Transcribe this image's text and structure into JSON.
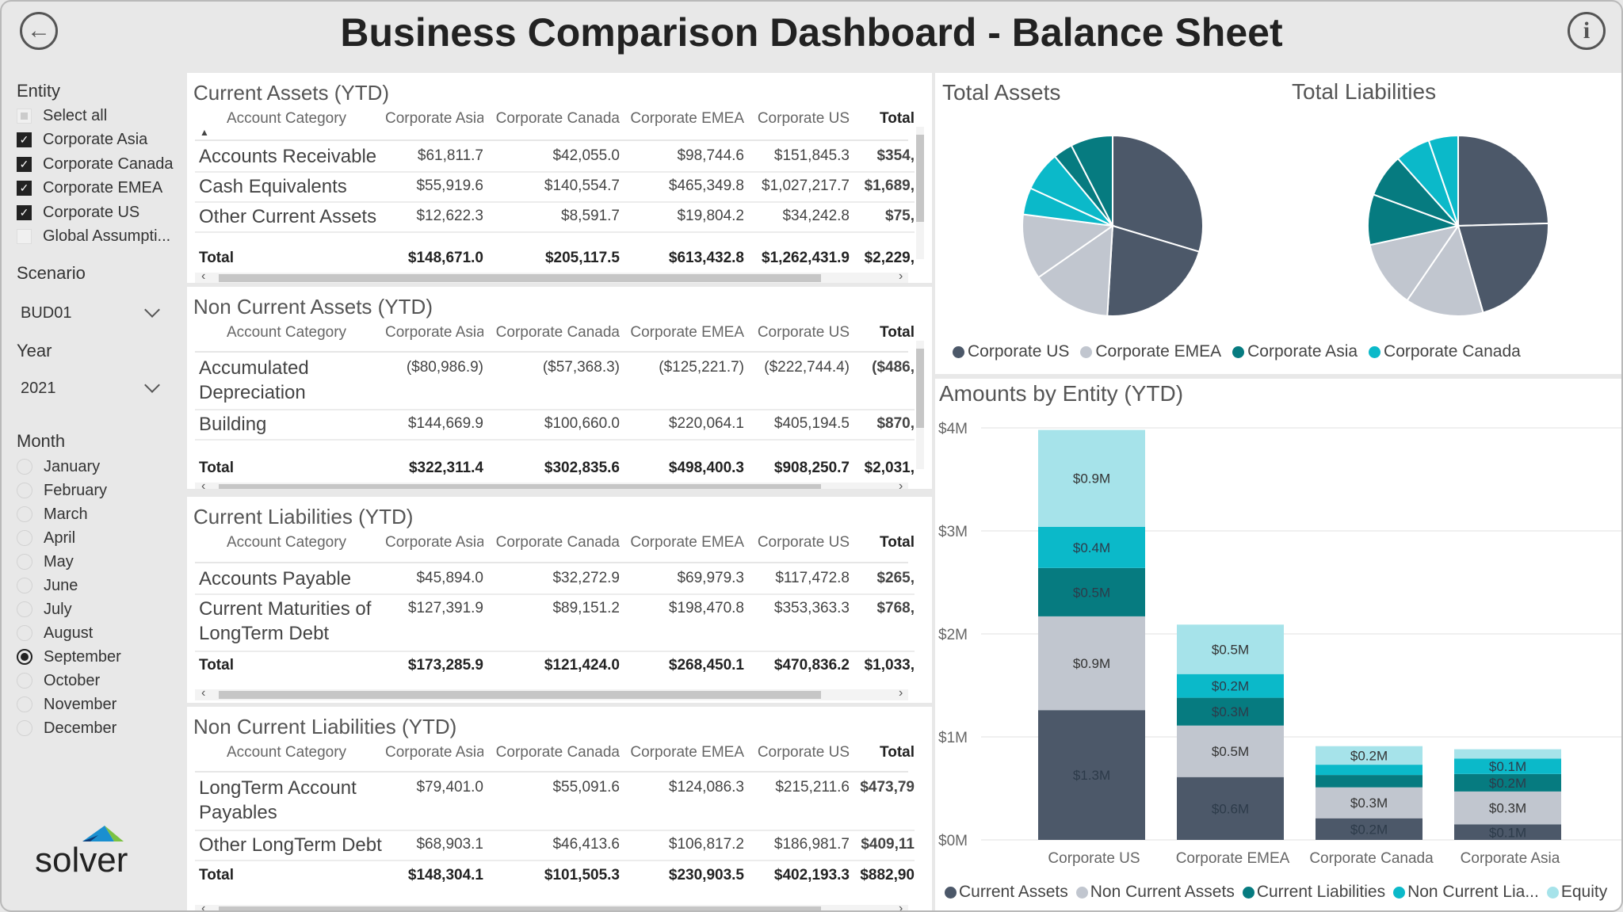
{
  "header": {
    "title": "Business Comparison Dashboard - Balance Sheet",
    "back_icon": "back-arrow-icon",
    "info_icon": "info-icon"
  },
  "sidebar": {
    "entity_label": "Entity",
    "entities": [
      {
        "label": "Select all",
        "state": "partial"
      },
      {
        "label": "Corporate Asia",
        "state": "checked"
      },
      {
        "label": "Corporate Canada",
        "state": "checked"
      },
      {
        "label": "Corporate EMEA",
        "state": "checked"
      },
      {
        "label": "Corporate US",
        "state": "checked"
      },
      {
        "label": "Global Assumpti...",
        "state": "unchecked"
      }
    ],
    "scenario_label": "Scenario",
    "scenario_value": "BUD01",
    "year_label": "Year",
    "year_value": "2021",
    "month_label": "Month",
    "months": [
      "January",
      "February",
      "March",
      "April",
      "May",
      "June",
      "July",
      "August",
      "September",
      "October",
      "November",
      "December"
    ],
    "selected_month": "September",
    "logo_text": "solver"
  },
  "tables": [
    {
      "title": "Current Assets (YTD)",
      "columns": [
        "Account Category",
        "Corporate Asia",
        "Corporate Canada",
        "Corporate EMEA",
        "Corporate US",
        "Total"
      ],
      "rows": [
        {
          "label": "Accounts Receivable",
          "values": [
            "$61,811.7",
            "$42,055.0",
            "$98,744.6",
            "$151,845.3",
            "$354,"
          ]
        },
        {
          "label": "Cash Equivalents",
          "values": [
            "$55,919.6",
            "$140,554.7",
            "$465,349.8",
            "$1,027,217.7",
            "$1,689,"
          ]
        },
        {
          "label": "Other Current Assets",
          "values": [
            "$12,622.3",
            "$8,591.7",
            "$19,804.2",
            "$34,242.8",
            "$75,"
          ]
        }
      ],
      "total": {
        "label": "Total",
        "values": [
          "$148,671.0",
          "$205,117.5",
          "$613,432.8",
          "$1,262,431.9",
          "$2,229,"
        ]
      }
    },
    {
      "title": "Non Current Assets (YTD)",
      "columns": [
        "Account Category",
        "Corporate Asia",
        "Corporate Canada",
        "Corporate EMEA",
        "Corporate US",
        "Total"
      ],
      "rows": [
        {
          "label": "Accumulated Depreciation",
          "values": [
            "($80,986.9)",
            "($57,368.3)",
            "($125,221.7)",
            "($222,744.4)",
            "($486,"
          ]
        },
        {
          "label": "Building",
          "values": [
            "$144,669.9",
            "$100,660.0",
            "$220,064.1",
            "$405,194.5",
            "$870,"
          ]
        }
      ],
      "total": {
        "label": "Total",
        "values": [
          "$322,311.4",
          "$302,835.6",
          "$498,400.3",
          "$908,250.7",
          "$2,031,"
        ]
      }
    },
    {
      "title": "Current Liabilities (YTD)",
      "columns": [
        "Account Category",
        "Corporate Asia",
        "Corporate Canada",
        "Corporate EMEA",
        "Corporate US",
        "Total"
      ],
      "rows": [
        {
          "label": "Accounts Payable",
          "values": [
            "$45,894.0",
            "$32,272.9",
            "$69,979.3",
            "$117,472.8",
            "$265,"
          ]
        },
        {
          "label": "Current Maturities of LongTerm Debt",
          "values": [
            "$127,391.9",
            "$89,151.2",
            "$198,470.8",
            "$353,363.3",
            "$768,"
          ]
        }
      ],
      "total": {
        "label": "Total",
        "values": [
          "$173,285.9",
          "$121,424.0",
          "$268,450.1",
          "$470,836.2",
          "$1,033,"
        ]
      }
    },
    {
      "title": "Non Current Liabilities (YTD)",
      "columns": [
        "Account Category",
        "Corporate Asia",
        "Corporate Canada",
        "Corporate EMEA",
        "Corporate US",
        "Total"
      ],
      "rows": [
        {
          "label": "LongTerm Account Payables",
          "values": [
            "$79,401.0",
            "$55,091.6",
            "$124,086.3",
            "$215,211.6",
            "$473,79"
          ]
        },
        {
          "label": "Other LongTerm Debt",
          "values": [
            "$68,903.1",
            "$46,413.6",
            "$106,817.2",
            "$186,981.7",
            "$409,11"
          ]
        }
      ],
      "total": {
        "label": "Total",
        "values": [
          "$148,304.1",
          "$101,505.3",
          "$230,903.5",
          "$402,193.3",
          "$882,90"
        ]
      }
    }
  ],
  "chart_data": [
    {
      "type": "pie",
      "title": "Total Assets",
      "slices": [
        {
          "entity": "Corporate US",
          "value": 1262431.9
        },
        {
          "entity": "Corporate US",
          "value": 908250.7
        },
        {
          "entity": "Corporate EMEA",
          "value": 613432.8
        },
        {
          "entity": "Corporate EMEA",
          "value": 498400.3
        },
        {
          "entity": "Corporate Canada",
          "value": 205117.5
        },
        {
          "entity": "Corporate Canada",
          "value": 302835.6
        },
        {
          "entity": "Corporate Asia",
          "value": 148671.0
        },
        {
          "entity": "Corporate Asia",
          "value": 322311.4
        }
      ]
    },
    {
      "type": "pie",
      "title": "Total Liabilities",
      "slices": [
        {
          "entity": "Corporate US",
          "value": 470836.2
        },
        {
          "entity": "Corporate US",
          "value": 402193.3
        },
        {
          "entity": "Corporate EMEA",
          "value": 268450.1
        },
        {
          "entity": "Corporate EMEA",
          "value": 230903.5
        },
        {
          "entity": "Corporate Asia",
          "value": 173285.9
        },
        {
          "entity": "Corporate Asia",
          "value": 148304.1
        },
        {
          "entity": "Corporate Canada",
          "value": 121424.0
        },
        {
          "entity": "Corporate Canada",
          "value": 101505.3
        }
      ]
    },
    {
      "type": "bar",
      "stacked": true,
      "title": "Amounts by Entity (YTD)",
      "categories": [
        "Corporate US",
        "Corporate EMEA",
        "Corporate Canada",
        "Corporate Asia"
      ],
      "yticks": [
        "$0M",
        "$1M",
        "$2M",
        "$3M",
        "$4M"
      ],
      "ylim": [
        0,
        4
      ],
      "grid": true,
      "legend_position": "bottom",
      "series": [
        {
          "name": "Current Assets",
          "values": [
            1.26,
            0.61,
            0.21,
            0.15
          ],
          "labels": [
            "$1.3M",
            "$0.6M",
            "$0.2M",
            "$0.1M"
          ]
        },
        {
          "name": "Non Current Assets",
          "values": [
            0.91,
            0.5,
            0.3,
            0.32
          ],
          "labels": [
            "$0.9M",
            "$0.5M",
            "$0.3M",
            "$0.3M"
          ]
        },
        {
          "name": "Current Liabilities",
          "values": [
            0.47,
            0.27,
            0.12,
            0.17
          ],
          "labels": [
            "$0.5M",
            "$0.3M",
            "",
            "$0.2M"
          ]
        },
        {
          "name": "Non Current Lia...",
          "values": [
            0.4,
            0.23,
            0.1,
            0.15
          ],
          "labels": [
            "$0.4M",
            "$0.2M",
            "",
            "$0.1M"
          ]
        },
        {
          "name": "Equity",
          "values": [
            0.94,
            0.48,
            0.18,
            0.09
          ],
          "labels": [
            "$0.9M",
            "$0.5M",
            "$0.2M",
            ""
          ]
        }
      ]
    }
  ],
  "pie_legend": [
    "Corporate US",
    "Corporate EMEA",
    "Corporate Asia",
    "Corporate Canada"
  ],
  "colors": {
    "Corporate US": "#4c5869",
    "Corporate EMEA": "#c1c6cf",
    "Corporate Asia": "#067b80",
    "Corporate Canada": "#0bb9c9",
    "Current Assets": "#4c5869",
    "Non Current Assets": "#c1c6cf",
    "Current Liabilities": "#067b80",
    "Non Current Lia...": "#0bb9c9",
    "Equity": "#a6e3ea"
  }
}
